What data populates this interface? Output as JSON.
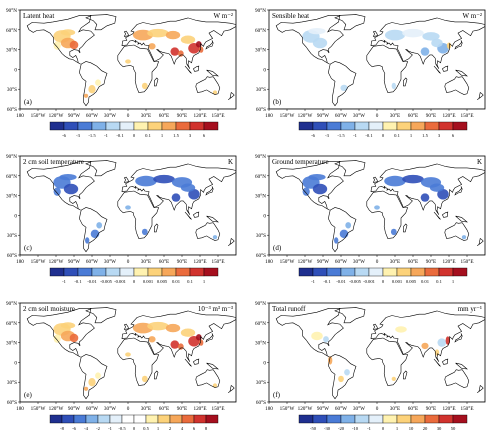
{
  "figure": {
    "lat_ticks": [
      "90°N",
      "60°N",
      "30°N",
      "0",
      "30°S",
      "60°S"
    ],
    "lon_ticks": [
      "180",
      "150°W",
      "120°W",
      "90°W",
      "60°W",
      "30°W",
      "0",
      "30°E",
      "60°E",
      "90°E",
      "120°E",
      "150°E"
    ],
    "colors": [
      "#1f2f8f",
      "#2f4fb8",
      "#4a7bd6",
      "#7fb1e8",
      "#b8d9f3",
      "#e4f0fa",
      "#ffffff",
      "#fff2b0",
      "#fcd27a",
      "#f6a75a",
      "#ea6b3c",
      "#d1332e",
      "#a50f1e"
    ],
    "land_color": "#ffffff",
    "coast_color": "#000000"
  },
  "panels": [
    {
      "title": "Latent heat",
      "units": "W m⁻²",
      "label": "(a)",
      "colorbar_ticks": [
        "-6",
        "-3",
        "-1.5",
        "-1",
        "-0.1",
        "0",
        "0.1",
        "1",
        "1.5",
        "3",
        "6"
      ],
      "pattern": "warm"
    },
    {
      "title": "Sensible heat",
      "units": "W m⁻²",
      "label": "(b)",
      "colorbar_ticks": [
        "-6",
        "-3",
        "-1.5",
        "-1",
        "-0.1",
        "0",
        "0.1",
        "1",
        "1.5",
        "3",
        "6"
      ],
      "pattern": "cool"
    },
    {
      "title": "2 cm soil temperature",
      "units": "K",
      "label": "(c)",
      "colorbar_ticks": [
        "-1",
        "-0.1",
        "-0.01",
        "-0.005",
        "-0.001",
        "0",
        "0.001",
        "0.005",
        "0.01",
        "0.1",
        "1"
      ],
      "pattern": "cold"
    },
    {
      "title": "Ground temperature",
      "units": "K",
      "label": "(d)",
      "colorbar_ticks": [
        "-1",
        "-0.1",
        "-0.01",
        "-0.005",
        "-0.001",
        "0",
        "0.001",
        "0.005",
        "0.01",
        "0.1",
        "1"
      ],
      "pattern": "cold"
    },
    {
      "title": "2 cm soil moisture",
      "units": "10⁻³ m³ m⁻³",
      "label": "(e)",
      "colorbar_ticks": [
        "-8",
        "-6",
        "-4",
        "-2",
        "-1",
        "-0.5",
        "0",
        "0.5",
        "1",
        "2",
        "4",
        "6",
        "8"
      ],
      "pattern": "warm"
    },
    {
      "title": "Total runoff",
      "units": "mm yr⁻¹",
      "label": "(f)",
      "colorbar_ticks": [
        "-50",
        "-30",
        "-20",
        "-10",
        "-1",
        "0",
        "1",
        "10",
        "20",
        "30",
        "50"
      ],
      "pattern": "mixed"
    }
  ]
}
